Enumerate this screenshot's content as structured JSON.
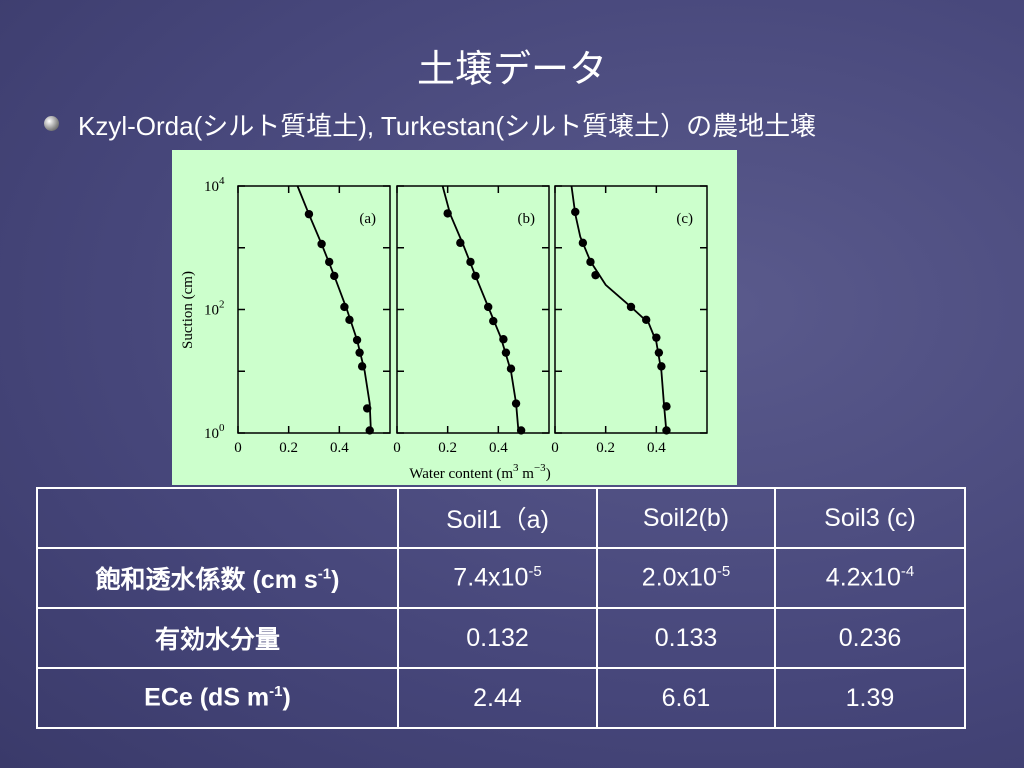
{
  "title": "土壌データ",
  "bullet": "Kzyl-Orda(シルト質埴土), Turkestan(シルト質壌土）の農地土壌",
  "axis_labels": {
    "y": "Suction (cm)",
    "x_parts": [
      "Water content (m",
      {
        "sup": "3"
      },
      " m",
      {
        "sup": "−3"
      },
      ")"
    ]
  },
  "chart_data": [
    {
      "type": "scatter",
      "label": "(a)",
      "log_y": true,
      "xlim": [
        0,
        0.6
      ],
      "ylim": [
        1,
        10000
      ],
      "xticks": [
        0,
        0.2,
        0.4
      ],
      "yticks": [
        1,
        10,
        100,
        1000,
        10000
      ],
      "ytick_labels": [
        {
          "value": 1,
          "label": "10",
          "sup": "0"
        },
        {
          "value": 100,
          "label": "10",
          "sup": "2"
        },
        {
          "value": 10000,
          "label": "10",
          "sup": "4"
        }
      ],
      "x": [
        0.28,
        0.33,
        0.36,
        0.38,
        0.42,
        0.44,
        0.47,
        0.48,
        0.49,
        0.51,
        0.52
      ],
      "values": [
        3500,
        1150,
        590,
        350,
        110,
        68,
        32,
        20,
        12,
        2.5,
        1.1
      ],
      "curve": {
        "x": [
          0.235,
          0.28,
          0.33,
          0.38,
          0.43,
          0.47,
          0.5,
          0.52,
          0.525
        ],
        "values": [
          10000,
          3500,
          1150,
          350,
          100,
          32,
          10,
          3,
          1
        ]
      }
    },
    {
      "type": "scatter",
      "label": "(b)",
      "log_y": true,
      "xlim": [
        0,
        0.6
      ],
      "ylim": [
        1,
        10000
      ],
      "xticks": [
        0,
        0.2,
        0.4
      ],
      "yticks": [
        1,
        10,
        100,
        1000,
        10000
      ],
      "x": [
        0.2,
        0.25,
        0.29,
        0.31,
        0.36,
        0.38,
        0.42,
        0.43,
        0.45,
        0.47,
        0.49
      ],
      "values": [
        3600,
        1200,
        590,
        350,
        110,
        65,
        33,
        20,
        11,
        3,
        1.1
      ],
      "curve": {
        "x": [
          0.18,
          0.21,
          0.26,
          0.31,
          0.36,
          0.41,
          0.45,
          0.47,
          0.48
        ],
        "values": [
          10000,
          3500,
          1150,
          350,
          110,
          35,
          10,
          3,
          1
        ]
      }
    },
    {
      "type": "scatter",
      "label": "(c)",
      "log_y": true,
      "xlim": [
        0,
        0.6
      ],
      "ylim": [
        1,
        10000
      ],
      "xticks": [
        0,
        0.2,
        0.4
      ],
      "yticks": [
        1,
        10,
        100,
        1000,
        10000
      ],
      "x": [
        0.08,
        0.11,
        0.14,
        0.16,
        0.3,
        0.36,
        0.4,
        0.41,
        0.42,
        0.44,
        0.44
      ],
      "values": [
        3800,
        1200,
        590,
        360,
        110,
        68,
        35,
        20,
        12,
        2.7,
        1.1
      ],
      "curve": {
        "x": [
          0.065,
          0.08,
          0.1,
          0.14,
          0.2,
          0.3,
          0.37,
          0.4,
          0.42,
          0.43,
          0.44
        ],
        "values": [
          10000,
          3500,
          1500,
          600,
          250,
          110,
          60,
          30,
          10,
          3,
          1
        ]
      }
    }
  ],
  "table": {
    "header": [
      null,
      [
        "Soil1（a)"
      ],
      [
        "Soil2(b)"
      ],
      [
        "Soil3 (c)"
      ]
    ],
    "rows": [
      [
        [
          "飽和透水係数 (cm s",
          {
            "sup": "-1"
          },
          ")"
        ],
        [
          "7.4x10",
          {
            "sup": "-5"
          }
        ],
        [
          "2.0x10",
          {
            "sup": "-5"
          }
        ],
        [
          "4.2x10",
          {
            "sup": "-4"
          }
        ]
      ],
      [
        [
          "有効水分量"
        ],
        [
          "0.132"
        ],
        [
          "0.133"
        ],
        [
          "0.236"
        ]
      ],
      [
        [
          "ECe (dS m",
          {
            "sup": "-1"
          },
          ")"
        ],
        [
          "2.44"
        ],
        [
          "6.61"
        ],
        [
          "1.39"
        ]
      ]
    ]
  }
}
